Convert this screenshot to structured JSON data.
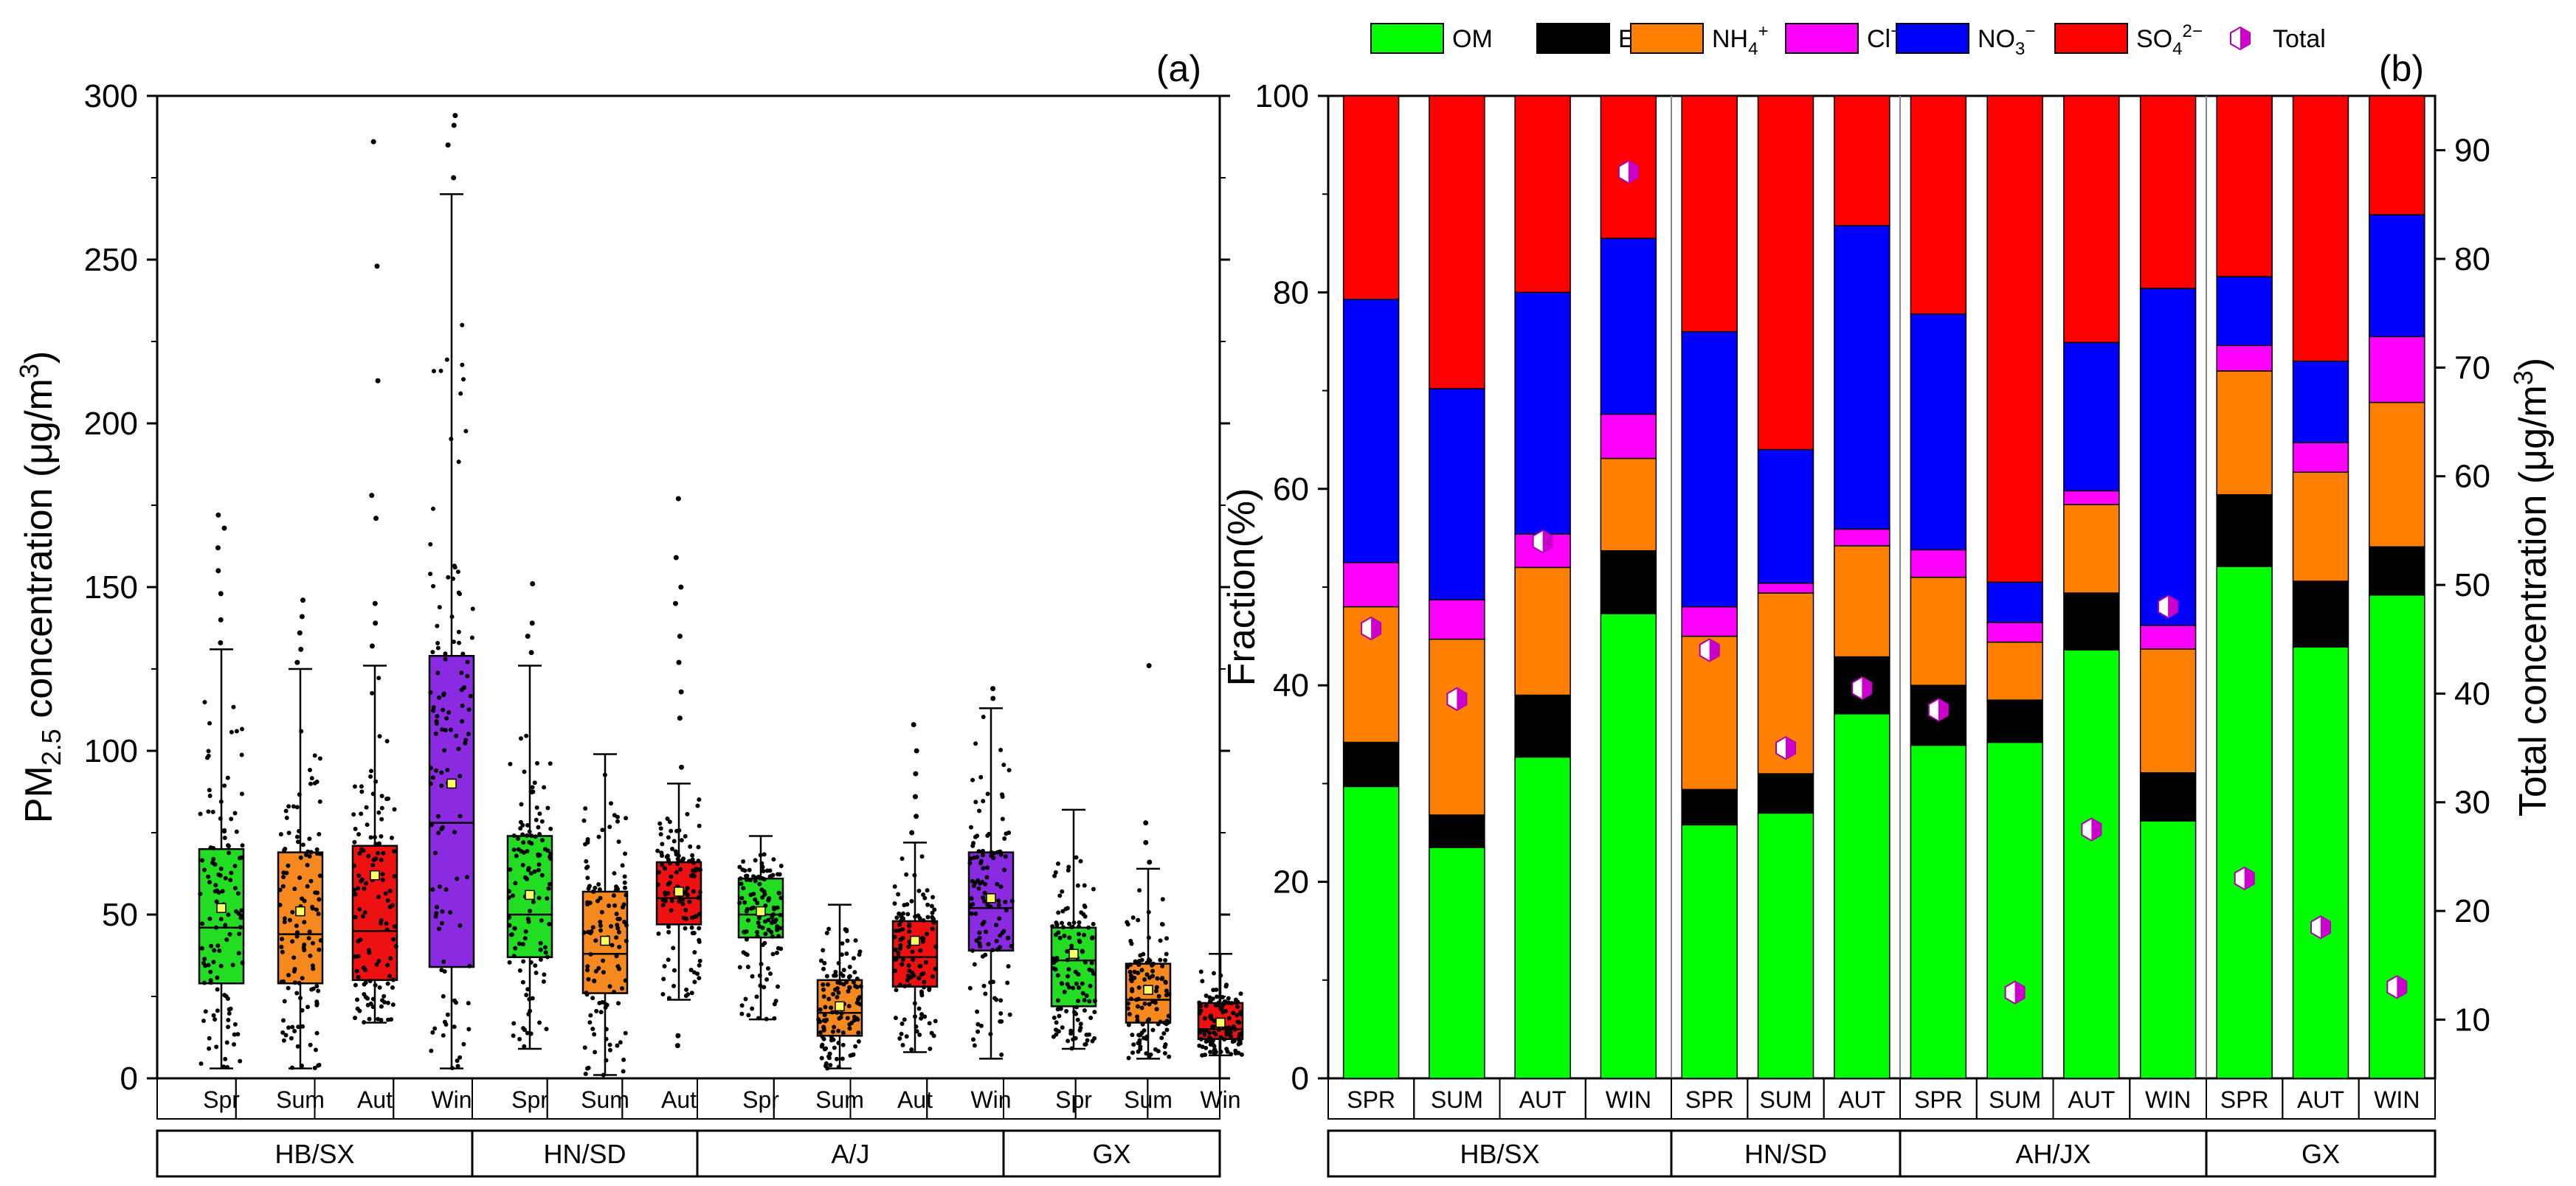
{
  "chart_data": [
    {
      "type": "box",
      "panel_label": "(a)",
      "ylabel": "PM2.5 concentration (μg/m3)",
      "ylabel_parts": {
        "main": "PM",
        "sub": "2.5",
        "mid": " concentration (μg/m",
        "sup": "3",
        "end": ")"
      },
      "ylim": [
        0,
        300
      ],
      "yticks": [
        "0",
        "50",
        "100",
        "150",
        "200",
        "250",
        "300"
      ],
      "groups": [
        {
          "label": "HB/SX",
          "boxes": [
            {
              "label": "Spr",
              "color": "#22dd22",
              "whisker_low": 3,
              "q1": 29,
              "median": 46,
              "mean": 52,
              "q3": 70,
              "whisker_high": 131,
              "outliers": [
                133,
                140,
                148,
                155,
                162,
                168,
                172
              ]
            },
            {
              "label": "Sum",
              "color": "#f5891f",
              "whisker_low": 3,
              "q1": 29,
              "median": 44,
              "mean": 51,
              "q3": 69,
              "whisker_high": 125,
              "outliers": [
                127,
                131,
                136,
                141,
                146
              ]
            },
            {
              "label": "Aut",
              "color": "#ee1111",
              "whisker_low": 17,
              "q1": 30,
              "median": 45,
              "mean": 62,
              "q3": 71,
              "whisker_high": 126,
              "outliers": [
                132,
                139,
                145,
                171,
                178,
                213,
                248,
                286
              ]
            },
            {
              "label": "Win",
              "color": "#8a2be2",
              "whisker_low": 3,
              "q1": 34,
              "median": 78,
              "mean": 90,
              "q3": 129,
              "whisker_high": 270,
              "outliers": [
                275,
                285,
                291,
                294
              ]
            }
          ]
        },
        {
          "label": "HN/SD",
          "boxes": [
            {
              "label": "Spr",
              "color": "#22dd22",
              "whisker_low": 9,
              "q1": 37,
              "median": 50,
              "mean": 56,
              "q3": 74,
              "whisker_high": 126,
              "outliers": [
                130,
                135,
                139,
                151
              ]
            },
            {
              "label": "Sum",
              "color": "#f5891f",
              "whisker_low": 1,
              "q1": 26,
              "median": 38,
              "mean": 42,
              "q3": 57,
              "whisker_high": 99,
              "outliers": []
            },
            {
              "label": "Aut",
              "color": "#ee1111",
              "whisker_low": 24,
              "q1": 47,
              "median": 55,
              "mean": 57,
              "q3": 66,
              "whisker_high": 90,
              "outliers": [
                10,
                13,
                95,
                110,
                118,
                127,
                135,
                145,
                150,
                159,
                177
              ]
            }
          ]
        },
        {
          "label": "A/J",
          "boxes": [
            {
              "label": "Spr",
              "color": "#22dd22",
              "whisker_low": 18,
              "q1": 43,
              "median": 50,
              "mean": 51,
              "q3": 61,
              "whisker_high": 74,
              "outliers": []
            },
            {
              "label": "Sum",
              "color": "#f5891f",
              "whisker_low": 3,
              "q1": 13,
              "median": 20,
              "mean": 22,
              "q3": 30,
              "whisker_high": 53,
              "outliers": []
            },
            {
              "label": "Aut",
              "color": "#ee1111",
              "whisker_low": 8,
              "q1": 28,
              "median": 37,
              "mean": 42,
              "q3": 48,
              "whisker_high": 72,
              "outliers": [
                75,
                80,
                86,
                93,
                100,
                108
              ]
            },
            {
              "label": "Win",
              "color": "#8a2be2",
              "whisker_low": 6,
              "q1": 39,
              "median": 52,
              "mean": 55,
              "q3": 69,
              "whisker_high": 113,
              "outliers": [
                116,
                119
              ]
            }
          ]
        },
        {
          "label": "GX",
          "boxes": [
            {
              "label": "Spr",
              "color": "#22dd22",
              "whisker_low": 9,
              "q1": 22,
              "median": 36,
              "mean": 38,
              "q3": 46,
              "whisker_high": 82,
              "outliers": []
            },
            {
              "label": "Sum",
              "color": "#f5891f",
              "whisker_low": 6,
              "q1": 17,
              "median": 24,
              "mean": 27,
              "q3": 35,
              "whisker_high": 64,
              "outliers": [
                66,
                72,
                78,
                126
              ]
            },
            {
              "label": "Win",
              "color": "#ee1111",
              "whisker_low": 7,
              "q1": 12,
              "median": 15,
              "mean": 17,
              "q3": 23,
              "whisker_high": 38,
              "outliers": []
            }
          ]
        }
      ]
    },
    {
      "type": "stacked-bar",
      "panel_label": "(b)",
      "ylabel": "Fraction(%)",
      "y2label": "Total concentration (μg/m3)",
      "y2label_parts": {
        "main": "Total concentration (μg/m",
        "sup": "3",
        "end": ")"
      },
      "ylim": [
        0,
        100
      ],
      "yticks": [
        "0",
        "20",
        "40",
        "60",
        "80",
        "100"
      ],
      "y2lim": [
        4.6,
        95
      ],
      "y2ticks": [
        "10",
        "20",
        "30",
        "40",
        "50",
        "60",
        "70",
        "80",
        "90"
      ],
      "legend": [
        {
          "key": "OM",
          "main": "OM",
          "sup": "",
          "sub": "",
          "color": "#00ff00"
        },
        {
          "key": "EC",
          "main": "EC",
          "sup": "",
          "sub": "",
          "color": "#000000"
        },
        {
          "key": "NH4",
          "main": "NH",
          "sub": "4",
          "sup": "+",
          "color": "#ff8000"
        },
        {
          "key": "Cl",
          "main": "Cl",
          "sub": "",
          "sup": "−",
          "color": "#ff00ff"
        },
        {
          "key": "NO3",
          "main": "NO",
          "sub": "3",
          "sup": "−",
          "color": "#0000ff"
        },
        {
          "key": "SO4",
          "main": "SO",
          "sub": "4",
          "sup": "2−",
          "color": "#ff0000"
        },
        {
          "key": "Total",
          "main": "Total",
          "sub": "",
          "sup": "",
          "color": "#cc00cc"
        }
      ],
      "series_order": [
        "OM",
        "EC",
        "NH4",
        "Cl",
        "NO3",
        "SO4"
      ],
      "groups": [
        {
          "label": "HB/SX",
          "bars": [
            {
              "label": "SPR",
              "OM": 29.7,
              "EC": 4.5,
              "NH4": 13.8,
              "Cl": 4.5,
              "NO3": 26.8,
              "SO4": 20.7,
              "total": 46
            },
            {
              "label": "SUM",
              "OM": 23.5,
              "EC": 3.3,
              "NH4": 17.9,
              "Cl": 4.0,
              "NO3": 21.5,
              "SO4": 29.8,
              "total": 39.5
            },
            {
              "label": "AUT",
              "OM": 32.7,
              "EC": 6.3,
              "NH4": 13.0,
              "Cl": 3.4,
              "NO3": 24.6,
              "SO4": 20.0,
              "total": 54
            },
            {
              "label": "WIN",
              "OM": 47.3,
              "EC": 6.4,
              "NH4": 9.4,
              "Cl": 4.5,
              "NO3": 17.9,
              "SO4": 14.5,
              "total": 88
            }
          ]
        },
        {
          "label": "HN/SD",
          "bars": [
            {
              "label": "SPR",
              "OM": 25.8,
              "EC": 3.6,
              "NH4": 15.6,
              "Cl": 3.0,
              "NO3": 28.0,
              "SO4": 24.0,
              "total": 44
            },
            {
              "label": "SUM",
              "OM": 27.0,
              "EC": 4.0,
              "NH4": 18.4,
              "Cl": 1.0,
              "NO3": 13.6,
              "SO4": 36.0,
              "total": 35
            },
            {
              "label": "AUT",
              "OM": 37.1,
              "EC": 5.8,
              "NH4": 11.3,
              "Cl": 1.7,
              "NO3": 30.9,
              "SO4": 13.2,
              "total": 40.5
            }
          ]
        },
        {
          "label": "AH/JX",
          "bars": [
            {
              "label": "SPR",
              "OM": 33.9,
              "EC": 6.1,
              "NH4": 11.0,
              "Cl": 2.8,
              "NO3": 24.0,
              "SO4": 22.2,
              "total": 38.5
            },
            {
              "label": "SUM",
              "OM": 34.2,
              "EC": 4.3,
              "NH4": 5.9,
              "Cl": 2.0,
              "NO3": 4.1,
              "SO4": 49.5,
              "total": 12.5
            },
            {
              "label": "AUT",
              "OM": 43.6,
              "EC": 5.8,
              "NH4": 9.0,
              "Cl": 1.4,
              "NO3": 15.1,
              "SO4": 25.1,
              "total": 27.5
            },
            {
              "label": "WIN",
              "OM": 26.2,
              "EC": 4.9,
              "NH4": 12.6,
              "Cl": 2.4,
              "NO3": 34.3,
              "SO4": 19.6,
              "total": 48
            }
          ]
        },
        {
          "label": "GX",
          "bars": [
            {
              "label": "SPR",
              "OM": 52.1,
              "EC": 7.3,
              "NH4": 12.6,
              "Cl": 2.6,
              "NO3": 7.0,
              "SO4": 18.4,
              "total": 23
            },
            {
              "label": "AUT",
              "OM": 43.9,
              "EC": 6.7,
              "NH4": 11.1,
              "Cl": 3.0,
              "NO3": 8.3,
              "SO4": 27.0,
              "total": 18.5
            },
            {
              "label": "WIN",
              "OM": 49.2,
              "EC": 4.9,
              "NH4": 14.7,
              "Cl": 6.7,
              "NO3": 12.4,
              "SO4": 12.1,
              "total": 13
            }
          ]
        }
      ]
    }
  ]
}
